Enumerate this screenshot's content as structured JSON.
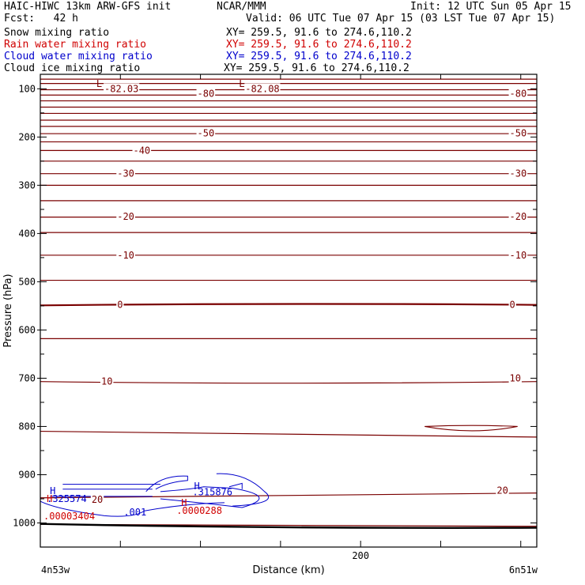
{
  "header": {
    "title_left": "HAIC-HIWC 13km ARW-GFS init",
    "title_mid": "NCAR/MMM",
    "init": "Init: 12 UTC Sun 05 Apr 15",
    "fcst": "Fcst:   42 h",
    "valid": "Valid: 06 UTC Tue 07 Apr 15 (03 LST Tue 07 Apr 15)",
    "fields": [
      {
        "name": "Snow mixing ratio",
        "xy": "XY= 259.5, 91.6 to 274.6,110.2",
        "color": "#000000"
      },
      {
        "name": "Rain water mixing ratio",
        "xy": "XY= 259.5, 91.6 to 274.6,110.2",
        "color": "#d00000"
      },
      {
        "name": "Cloud water mixing ratio",
        "xy": "XY= 259.5, 91.6 to 274.6,110.2",
        "color": "#0000cc"
      },
      {
        "name": "Cloud ice mixing ratio",
        "xy": "XY= 259.5, 91.6 to 274.6,110.2",
        "color": "#000000"
      }
    ]
  },
  "chart_data": {
    "type": "contour",
    "xlabel": "Distance (km)",
    "ylabel": "Pressure (hPa)",
    "xlim": [
      0,
      310
    ],
    "ylim": [
      1050,
      70
    ],
    "xticks": [
      0,
      50,
      100,
      150,
      200,
      250,
      300
    ],
    "xtick_labels": [
      {
        "x": 200,
        "label": "200"
      }
    ],
    "yticks": [
      100,
      150,
      200,
      250,
      300,
      350,
      400,
      450,
      500,
      550,
      600,
      650,
      700,
      750,
      800,
      850,
      900,
      950,
      1000
    ],
    "ytick_labels": [
      "100",
      "200",
      "300",
      "400",
      "500",
      "600",
      "700",
      "800",
      "900",
      "1000"
    ],
    "corner_left": "4n53w",
    "corner_right": "6n51w",
    "contour_color": "#7a0000",
    "temperature_levels": [
      {
        "p": [
          80,
          80
        ],
        "label": null
      },
      {
        "p": [
          89,
          89
        ],
        "label": null
      },
      {
        "p": [
          102,
          102
        ],
        "label": null
      },
      {
        "p": [
          113,
          113
        ],
        "label": "-80"
      },
      {
        "p": [
          125,
          125
        ],
        "label": null
      },
      {
        "p": [
          138,
          138
        ],
        "label": null
      },
      {
        "p": [
          151,
          151
        ],
        "label": null
      },
      {
        "p": [
          165,
          165
        ],
        "label": null
      },
      {
        "p": [
          178,
          178
        ],
        "label": null
      },
      {
        "p": [
          193,
          193
        ],
        "label": "-50"
      },
      {
        "p": [
          210,
          210
        ],
        "label": null
      },
      {
        "p": [
          228,
          228
        ],
        "label": "-40"
      },
      {
        "p": [
          250,
          250
        ],
        "label": null
      },
      {
        "p": [
          276,
          276
        ],
        "label": "-30"
      },
      {
        "p": [
          300,
          300
        ],
        "label": null
      },
      {
        "p": [
          332,
          332
        ],
        "label": null
      },
      {
        "p": [
          366,
          366
        ],
        "label": "-20"
      },
      {
        "p": [
          398,
          398
        ],
        "label": null
      },
      {
        "p": [
          445,
          445
        ],
        "label": "-10"
      },
      {
        "p": [
          497,
          497
        ],
        "label": null
      },
      {
        "p": [
          549,
          548
        ],
        "label": "0"
      },
      {
        "p": [
          618,
          618
        ],
        "label": null
      },
      {
        "p": [
          707,
          707
        ],
        "label": "10"
      },
      {
        "p": [
          810,
          822
        ],
        "label": null
      },
      {
        "p": [
          948,
          938
        ],
        "label": "20"
      },
      {
        "p": [
          1003,
          1007
        ],
        "label": null
      }
    ],
    "labels": [
      {
        "text": "L",
        "x": 35,
        "p": 90,
        "color": "#7a0000"
      },
      {
        "text": "-82.03",
        "x": 40,
        "p": 100,
        "color": "#7a0000"
      },
      {
        "text": "L",
        "x": 124,
        "p": 90,
        "color": "#7a0000"
      },
      {
        "text": "-82.08",
        "x": 128,
        "p": 100,
        "color": "#7a0000"
      },
      {
        "text": "-80",
        "x": 98,
        "p": 110,
        "color": "#7a0000"
      },
      {
        "text": "-80",
        "x": 293,
        "p": 110,
        "color": "#7a0000"
      },
      {
        "text": "-50",
        "x": 98,
        "p": 192,
        "color": "#7a0000"
      },
      {
        "text": "-50",
        "x": 293,
        "p": 192,
        "color": "#7a0000"
      },
      {
        "text": "-40",
        "x": 58,
        "p": 228,
        "color": "#7a0000"
      },
      {
        "text": "-30",
        "x": 48,
        "p": 276,
        "color": "#7a0000"
      },
      {
        "text": "-30",
        "x": 293,
        "p": 276,
        "color": "#7a0000"
      },
      {
        "text": "-20",
        "x": 48,
        "p": 365,
        "color": "#7a0000"
      },
      {
        "text": "-20",
        "x": 293,
        "p": 365,
        "color": "#7a0000"
      },
      {
        "text": "-10",
        "x": 48,
        "p": 445,
        "color": "#7a0000"
      },
      {
        "text": "-10",
        "x": 293,
        "p": 445,
        "color": "#7a0000"
      },
      {
        "text": "0",
        "x": 48,
        "p": 548,
        "color": "#7a0000"
      },
      {
        "text": "0",
        "x": 293,
        "p": 548,
        "color": "#7a0000"
      },
      {
        "text": "10",
        "x": 38,
        "p": 707,
        "color": "#7a0000"
      },
      {
        "text": "10",
        "x": 293,
        "p": 700,
        "color": "#7a0000"
      },
      {
        "text": "20",
        "x": 285,
        "p": 933,
        "color": "#7a0000"
      },
      {
        "text": "20",
        "x": 32,
        "p": 952,
        "color": "#7a0000"
      },
      {
        "text": "H",
        "x": 6,
        "p": 934,
        "color": "#0000cc"
      },
      {
        "text": ".325574",
        "x": 4,
        "p": 950,
        "color": "#0000cc"
      },
      {
        "text": "H",
        "x": 96,
        "p": 924,
        "color": "#0000cc"
      },
      {
        "text": ".315876",
        "x": 95,
        "p": 936,
        "color": "#0000cc"
      },
      {
        "text": ".001",
        "x": 52,
        "p": 978,
        "color": "#0000cc"
      },
      {
        "text": "H",
        "x": 4,
        "p": 950,
        "color": "#d00000"
      },
      {
        "text": ".00003404",
        "x": 2,
        "p": 986,
        "color": "#d00000"
      },
      {
        "text": "H",
        "x": 88,
        "p": 958,
        "color": "#d00000"
      },
      {
        "text": ".0000288",
        "x": 85,
        "p": 975,
        "color": "#d00000"
      }
    ]
  }
}
